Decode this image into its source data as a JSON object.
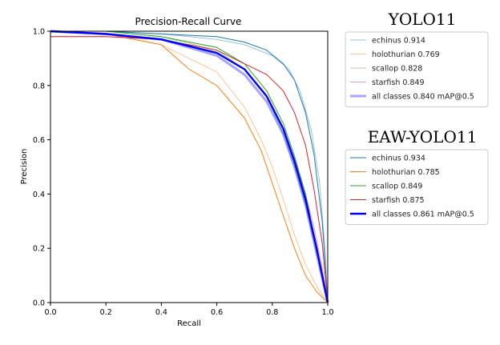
{
  "chart_data": {
    "type": "line",
    "title": "Precision-Recall Curve",
    "xlabel": "Recall",
    "ylabel": "Precision",
    "xlim": [
      0.0,
      1.0
    ],
    "ylim": [
      0.0,
      1.0
    ],
    "xticks": [
      "0.0",
      "0.2",
      "0.4",
      "0.6",
      "0.8",
      "1.0"
    ],
    "yticks": [
      "0.0",
      "0.2",
      "0.4",
      "0.6",
      "0.8",
      "1.0"
    ],
    "grid": false,
    "legend_placement": "right, outside plot",
    "colors": {
      "echinus": "#1f77b4",
      "holothurian": "#ff7f0e",
      "scallop": "#2ca02c",
      "starfish": "#d62728",
      "all_classes": "#0000ff"
    },
    "groups": [
      {
        "title": "YOLO11",
        "style": "faded",
        "series": [
          {
            "name": "echinus 0.914",
            "key": "echinus",
            "x": [
              0,
              0.2,
              0.4,
              0.6,
              0.7,
              0.8,
              0.86,
              0.9,
              0.94,
              0.97,
              0.99,
              1.0
            ],
            "y": [
              1.0,
              1.0,
              0.99,
              0.97,
              0.95,
              0.91,
              0.86,
              0.78,
              0.64,
              0.45,
              0.2,
              0.0
            ]
          },
          {
            "name": "holothurian 0.769",
            "key": "holothurian",
            "x": [
              0,
              0.2,
              0.4,
              0.5,
              0.6,
              0.7,
              0.76,
              0.8,
              0.84,
              0.88,
              0.92,
              0.96,
              1.0
            ],
            "y": [
              1.0,
              0.99,
              0.95,
              0.9,
              0.85,
              0.72,
              0.6,
              0.5,
              0.38,
              0.25,
              0.14,
              0.06,
              0.0
            ]
          },
          {
            "name": "scallop 0.828",
            "key": "scallop",
            "x": [
              0,
              0.2,
              0.4,
              0.6,
              0.7,
              0.78,
              0.84,
              0.88,
              0.92,
              0.96,
              1.0
            ],
            "y": [
              1.0,
              1.0,
              0.98,
              0.93,
              0.86,
              0.76,
              0.62,
              0.5,
              0.36,
              0.18,
              0.0
            ]
          },
          {
            "name": "starfish 0.849",
            "key": "starfish",
            "x": [
              0,
              0.2,
              0.4,
              0.6,
              0.7,
              0.78,
              0.84,
              0.88,
              0.92,
              0.95,
              0.98,
              1.0
            ],
            "y": [
              0.98,
              0.98,
              0.97,
              0.92,
              0.86,
              0.76,
              0.64,
              0.53,
              0.4,
              0.28,
              0.13,
              0.0
            ]
          },
          {
            "name": "all classes 0.840 mAP@0.5",
            "key": "all_classes",
            "x": [
              0,
              0.2,
              0.4,
              0.6,
              0.7,
              0.78,
              0.84,
              0.88,
              0.92,
              0.96,
              1.0
            ],
            "y": [
              1.0,
              0.99,
              0.97,
              0.91,
              0.84,
              0.74,
              0.62,
              0.5,
              0.36,
              0.18,
              0.0
            ]
          }
        ]
      },
      {
        "title": "EAW-YOLO11",
        "style": "solid",
        "series": [
          {
            "name": "echinus 0.934",
            "key": "echinus",
            "x": [
              0,
              0.2,
              0.4,
              0.6,
              0.7,
              0.78,
              0.84,
              0.88,
              0.92,
              0.95,
              0.98,
              1.0
            ],
            "y": [
              1.0,
              1.0,
              0.99,
              0.98,
              0.96,
              0.93,
              0.88,
              0.82,
              0.7,
              0.55,
              0.3,
              0.0
            ]
          },
          {
            "name": "holothurian 0.785",
            "key": "holothurian",
            "x": [
              0,
              0.2,
              0.4,
              0.5,
              0.6,
              0.7,
              0.76,
              0.8,
              0.84,
              0.88,
              0.92,
              0.96,
              1.0
            ],
            "y": [
              1.0,
              0.99,
              0.95,
              0.86,
              0.8,
              0.68,
              0.56,
              0.44,
              0.32,
              0.2,
              0.1,
              0.04,
              0.0
            ]
          },
          {
            "name": "scallop 0.849",
            "key": "scallop",
            "x": [
              0,
              0.2,
              0.4,
              0.6,
              0.7,
              0.78,
              0.84,
              0.88,
              0.92,
              0.96,
              1.0
            ],
            "y": [
              1.0,
              1.0,
              0.98,
              0.94,
              0.88,
              0.78,
              0.66,
              0.54,
              0.4,
              0.2,
              0.0
            ]
          },
          {
            "name": "starfish 0.875",
            "key": "starfish",
            "x": [
              0,
              0.2,
              0.4,
              0.6,
              0.7,
              0.78,
              0.84,
              0.88,
              0.92,
              0.95,
              0.98,
              1.0
            ],
            "y": [
              0.98,
              0.98,
              0.97,
              0.93,
              0.88,
              0.84,
              0.78,
              0.7,
              0.58,
              0.42,
              0.22,
              0.0
            ]
          },
          {
            "name": "all classes 0.861 mAP@0.5",
            "key": "all_classes",
            "x": [
              0,
              0.2,
              0.4,
              0.6,
              0.7,
              0.78,
              0.84,
              0.88,
              0.92,
              0.96,
              1.0
            ],
            "y": [
              1.0,
              0.99,
              0.97,
              0.92,
              0.86,
              0.76,
              0.64,
              0.52,
              0.38,
              0.2,
              0.0
            ]
          }
        ]
      }
    ]
  }
}
